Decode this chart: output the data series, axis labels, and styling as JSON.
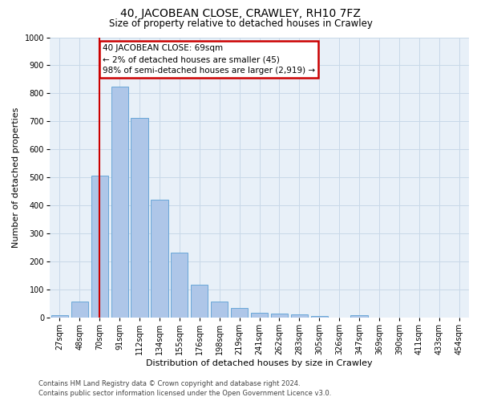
{
  "title": "40, JACOBEAN CLOSE, CRAWLEY, RH10 7FZ",
  "subtitle": "Size of property relative to detached houses in Crawley",
  "xlabel": "Distribution of detached houses by size in Crawley",
  "ylabel": "Number of detached properties",
  "footer_line1": "Contains HM Land Registry data © Crown copyright and database right 2024.",
  "footer_line2": "Contains public sector information licensed under the Open Government Licence v3.0.",
  "bar_labels": [
    "27sqm",
    "48sqm",
    "70sqm",
    "91sqm",
    "112sqm",
    "134sqm",
    "155sqm",
    "176sqm",
    "198sqm",
    "219sqm",
    "241sqm",
    "262sqm",
    "283sqm",
    "305sqm",
    "326sqm",
    "347sqm",
    "369sqm",
    "390sqm",
    "411sqm",
    "433sqm",
    "454sqm"
  ],
  "bar_values": [
    8,
    57,
    505,
    825,
    712,
    420,
    232,
    117,
    57,
    32,
    15,
    14,
    10,
    6,
    0,
    8,
    0,
    0,
    0,
    0,
    0
  ],
  "bar_color": "#aec6e8",
  "bar_edgecolor": "#5a9fd4",
  "grid_color": "#c8d8e8",
  "background_color": "#e8f0f8",
  "annotation_text": "40 JACOBEAN CLOSE: 69sqm\n← 2% of detached houses are smaller (45)\n98% of semi-detached houses are larger (2,919) →",
  "annotation_box_facecolor": "white",
  "annotation_box_edgecolor": "#cc0000",
  "vline_color": "#cc0000",
  "vline_idx": 2,
  "ylim": [
    0,
    1000
  ],
  "yticks": [
    0,
    100,
    200,
    300,
    400,
    500,
    600,
    700,
    800,
    900,
    1000
  ],
  "title_fontsize": 10,
  "subtitle_fontsize": 8.5,
  "ylabel_fontsize": 8,
  "xlabel_fontsize": 8,
  "tick_fontsize": 7,
  "footer_fontsize": 6,
  "annot_fontsize": 7.5
}
